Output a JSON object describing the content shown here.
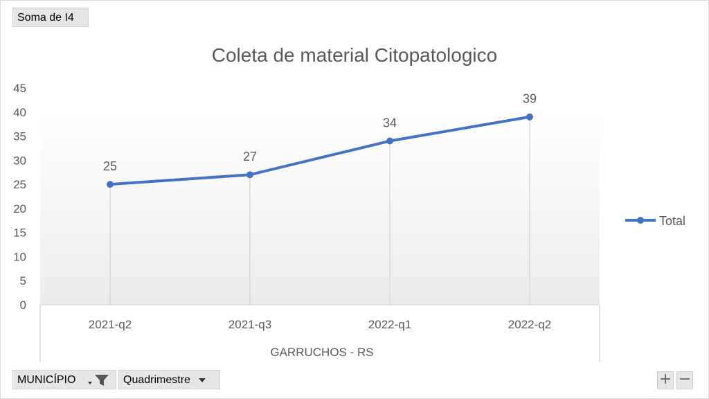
{
  "pivot": {
    "value_field": "Soma de I4",
    "filter_field": "MUNICÍPIO",
    "row_field": "Quadrimestre"
  },
  "zoom": {
    "in_label": "+",
    "out_label": "−"
  },
  "chart_data": {
    "type": "line",
    "title": "Coleta de material Citopatologico",
    "xlabel": "GARRUCHOS - RS",
    "ylabel": "",
    "categories": [
      "2021-q2",
      "2021-q3",
      "2022-q1",
      "2022-q2"
    ],
    "series": [
      {
        "name": "Total",
        "values": [
          25,
          27,
          34,
          39
        ],
        "color": "#4472c4"
      }
    ],
    "data_labels": [
      "25",
      "27",
      "34",
      "39"
    ],
    "ylim": [
      0,
      45
    ],
    "yticks": [
      "0",
      "5",
      "10",
      "15",
      "20",
      "25",
      "30",
      "35",
      "40",
      "45"
    ],
    "legend": "right",
    "grid": false
  }
}
